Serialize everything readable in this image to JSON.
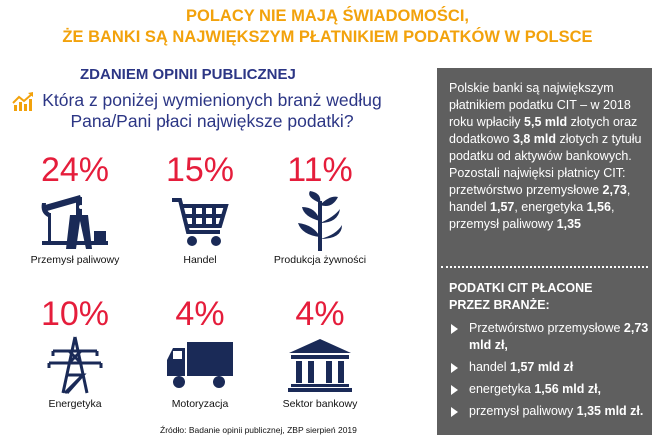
{
  "title": [
    "POLACY NIE MAJĄ ŚWIADOMOŚCI,",
    "ŻE BANKI SĄ NAJWIĘKSZYM PŁATNIKIEM PODATKÓW W POLSCE"
  ],
  "subtitle": "ZDANIEM OPINII PUBLICZNEJ",
  "question": [
    "Która z poniżej wymienionych branż według",
    "Pana/Pani płaci największe podatki?"
  ],
  "items": [
    {
      "pct": "24%",
      "label": "Przemysł paliwowy",
      "icon": "oil-pump-icon"
    },
    {
      "pct": "15%",
      "label": "Handel",
      "icon": "shopping-cart-icon"
    },
    {
      "pct": "11%",
      "label": "Produkcja żywności",
      "icon": "plant-icon"
    },
    {
      "pct": "10%",
      "label": "Energetyka",
      "icon": "power-tower-icon"
    },
    {
      "pct": "4%",
      "label": "Motoryzacja",
      "icon": "truck-icon"
    },
    {
      "pct": "4%",
      "label": "Sektor bankowy",
      "icon": "bank-icon"
    }
  ],
  "panel": {
    "t1": "Polskie banki są największym płatnikiem podatku CIT – w 2018 roku wpłaciły ",
    "b1": "5,5 mld",
    "t2": " złotych oraz dodatkowo ",
    "b2": "3,8 mld",
    "t3": " złotych z tytułu podatku od aktywów bankowych. Pozostali najwięksi płatnicy CIT: przetwórstwo przemysłowe ",
    "b3": "2,73",
    "t4": ", handel ",
    "b4": "1,57",
    "t5": ", energetyka ",
    "b5": "1,56",
    "t6": ", przemysł paliwowy ",
    "b6": "1,35",
    "heading": [
      "PODATKI CIT PŁACONE",
      "PRZEZ BRANŻE:"
    ],
    "list": [
      {
        "t": "Przetwórstwo przemysłowe ",
        "b": "2,73 mld zł,"
      },
      {
        "t": "handel ",
        "b": "1,57 mld zł"
      },
      {
        "t": "energetyka ",
        "b": "1,56 mld zł,"
      },
      {
        "t": "przemysł paliwowy ",
        "b": "1,35 mld zł."
      }
    ]
  },
  "source": "Źródło: Badanie opinii publicznej, ZBP sierpień 2019",
  "colors": {
    "orange": "#f2a20c",
    "navy": "#2c3685",
    "red": "#e51d3b",
    "panel": "#5f5f5f"
  }
}
